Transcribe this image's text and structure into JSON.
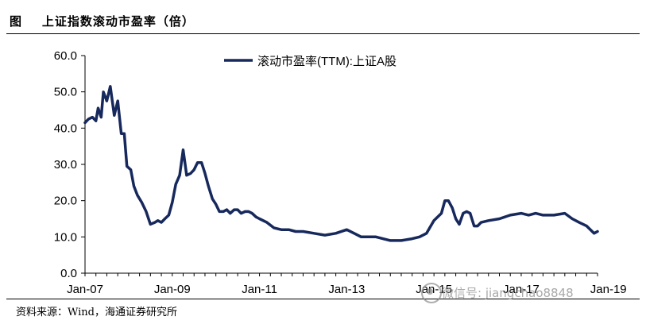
{
  "header": {
    "title": "图    上证指数滚动市盈率（倍）"
  },
  "source": {
    "text": "资料来源：Wind，海通证券研究所"
  },
  "watermark": {
    "text": "微信号: jiangchao8848"
  },
  "chart_data": {
    "type": "line",
    "ylim": [
      0,
      60
    ],
    "yticks": [
      "60.0",
      "50.0",
      "40.0",
      "30.0",
      "20.0",
      "10.0",
      "0.0"
    ],
    "ytick_values": [
      60,
      50,
      40,
      30,
      20,
      10,
      0
    ],
    "xlim": [
      2007.0,
      2018.75
    ],
    "xticks": [
      "Jan-07",
      "Jan-09",
      "Jan-11",
      "Jan-13",
      "Jan-15",
      "Jan-17",
      "Jan-19"
    ],
    "xtick_values": [
      2007,
      2009,
      2011,
      2013,
      2015,
      2017,
      2019
    ],
    "legend_position": "top-center",
    "series_color": "#17295c",
    "series": [
      {
        "name": "滚动市盈率(TTM):上证A股",
        "x": [
          2007.0,
          2007.08,
          2007.17,
          2007.25,
          2007.3,
          2007.37,
          2007.42,
          2007.5,
          2007.58,
          2007.67,
          2007.75,
          2007.83,
          2007.9,
          2007.96,
          2008.05,
          2008.12,
          2008.2,
          2008.3,
          2008.4,
          2008.5,
          2008.6,
          2008.67,
          2008.75,
          2008.83,
          2008.92,
          2009.0,
          2009.08,
          2009.17,
          2009.25,
          2009.33,
          2009.42,
          2009.5,
          2009.58,
          2009.67,
          2009.75,
          2009.83,
          2009.92,
          2010.0,
          2010.08,
          2010.17,
          2010.25,
          2010.33,
          2010.42,
          2010.5,
          2010.58,
          2010.67,
          2010.75,
          2010.83,
          2010.92,
          2011.0,
          2011.17,
          2011.33,
          2011.5,
          2011.67,
          2011.83,
          2012.0,
          2012.25,
          2012.5,
          2012.75,
          2013.0,
          2013.17,
          2013.33,
          2013.5,
          2013.67,
          2013.83,
          2014.0,
          2014.25,
          2014.5,
          2014.67,
          2014.83,
          2015.0,
          2015.17,
          2015.25,
          2015.33,
          2015.42,
          2015.5,
          2015.58,
          2015.67,
          2015.75,
          2015.83,
          2015.92,
          2016.0,
          2016.08,
          2016.25,
          2016.5,
          2016.75,
          2017.0,
          2017.17,
          2017.33,
          2017.5,
          2017.75,
          2018.0,
          2018.17,
          2018.33,
          2018.5,
          2018.67,
          2018.75
        ],
        "values": [
          41.5,
          42.5,
          43.0,
          42.0,
          45.5,
          43.0,
          50.0,
          47.5,
          51.5,
          43.5,
          47.5,
          38.5,
          38.5,
          29.5,
          28.5,
          24.0,
          21.5,
          19.5,
          17.0,
          13.5,
          14.0,
          14.5,
          14.0,
          15.0,
          16.0,
          19.5,
          24.5,
          27.0,
          34.0,
          27.0,
          27.5,
          28.5,
          30.5,
          30.5,
          27.5,
          24.0,
          20.5,
          19.0,
          17.0,
          17.0,
          17.5,
          16.5,
          17.5,
          17.5,
          16.5,
          17.0,
          17.0,
          16.5,
          15.5,
          15.0,
          14.0,
          12.5,
          12.0,
          12.0,
          11.5,
          11.5,
          11.0,
          10.5,
          11.0,
          12.0,
          11.0,
          10.0,
          10.0,
          10.0,
          9.5,
          9.0,
          9.0,
          9.5,
          10.0,
          11.0,
          14.5,
          16.5,
          20.0,
          20.0,
          18.0,
          15.0,
          13.5,
          16.5,
          17.0,
          16.5,
          13.0,
          13.0,
          14.0,
          14.5,
          15.0,
          16.0,
          16.5,
          16.0,
          16.5,
          16.0,
          16.0,
          16.5,
          15.0,
          14.0,
          13.0,
          11.0,
          11.5
        ]
      }
    ]
  }
}
